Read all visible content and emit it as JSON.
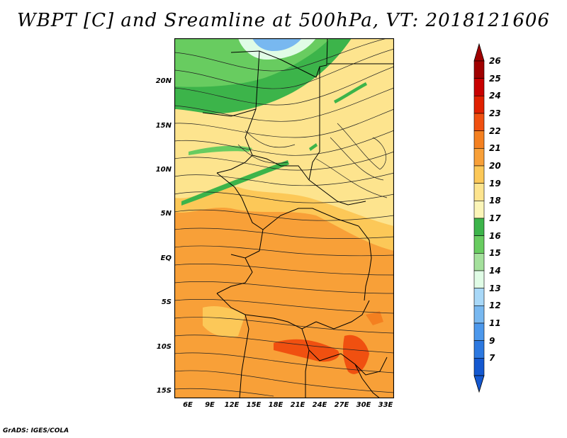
{
  "title": "WBPT [C] and Sreamline at 500hPa, VT: 2018121606",
  "footer": "GrADS: IGES/COLA",
  "lat_labels": [
    "20N",
    "15N",
    "10N",
    "5N",
    "EQ",
    "5S",
    "10S",
    "15S"
  ],
  "lon_labels": [
    "6E",
    "9E",
    "12E",
    "15E",
    "18E",
    "21E",
    "24E",
    "27E",
    "30E",
    "33E"
  ],
  "colorbar": {
    "labels": [
      "26",
      "25",
      "24",
      "23",
      "22",
      "21",
      "20",
      "19",
      "18",
      "17",
      "16",
      "15",
      "14",
      "13",
      "12",
      "11",
      "9",
      "7"
    ],
    "colors": [
      "#a00000",
      "#c80000",
      "#e02000",
      "#f05010",
      "#f48020",
      "#f8a038",
      "#fcc858",
      "#fde48e",
      "#fbf5b8",
      "#3cb44a",
      "#68cc60",
      "#a4e09c",
      "#e0fce6",
      "#a8d8f8",
      "#78b8f0",
      "#4c98ec",
      "#2c78e0",
      "#1458d0"
    ]
  },
  "legend": {
    "warm": "#f8a038",
    "hot": "#f05010",
    "cool": "#fde48e",
    "green": "#3cb44a"
  }
}
